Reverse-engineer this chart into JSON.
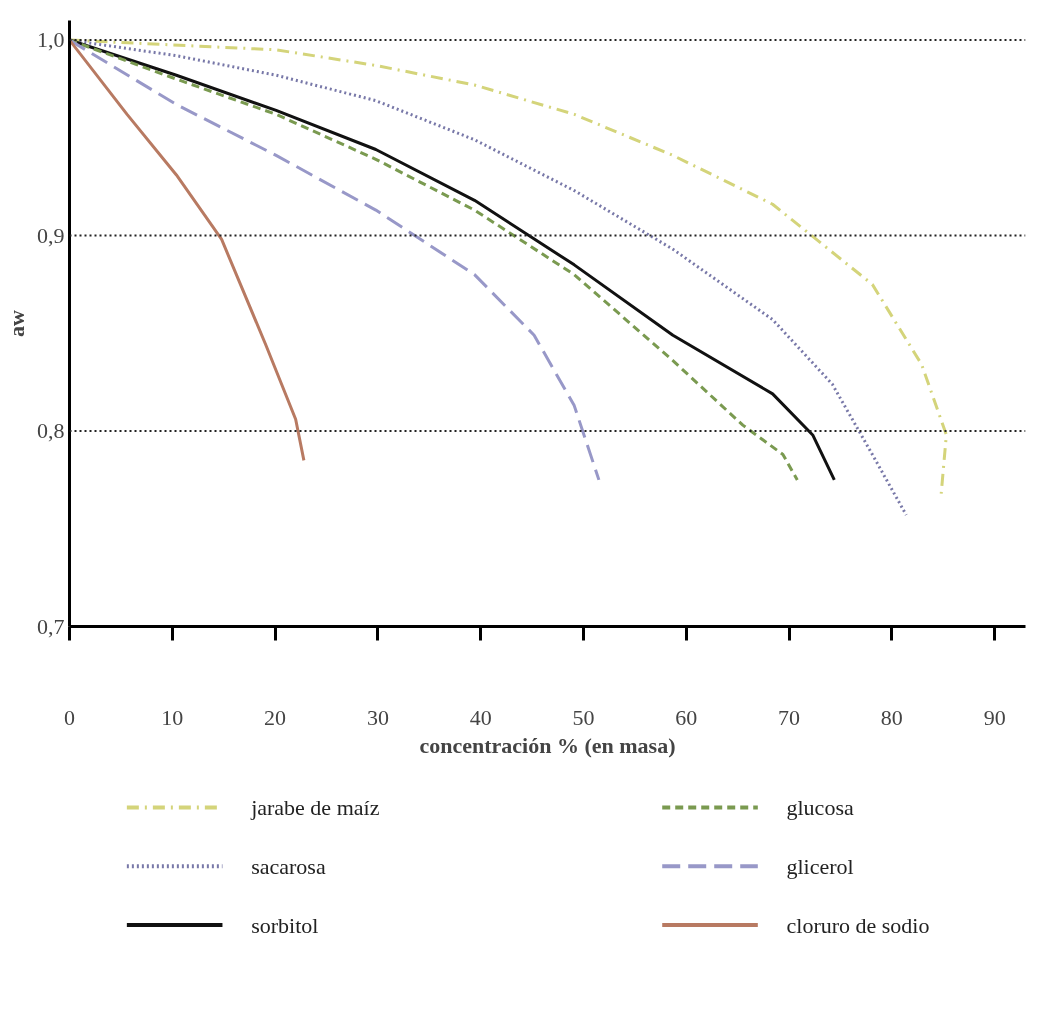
{
  "chart_data": {
    "type": "line",
    "ylabel": "aw",
    "xlabel": "concentración % (en masa)",
    "xlim": [
      0,
      93
    ],
    "ylim": [
      0.7,
      1.01
    ],
    "xticks": [
      0,
      10,
      20,
      30,
      40,
      50,
      60,
      70,
      80,
      90
    ],
    "yticks": [
      {
        "value": 0.7,
        "label": "0,7"
      },
      {
        "value": 0.8,
        "label": "0,8"
      },
      {
        "value": 0.9,
        "label": "0,9"
      },
      {
        "value": 1.0,
        "label": "1,0"
      }
    ],
    "ref_lines": [
      {
        "axis": "y",
        "value": 1.0,
        "line_style": "dotted",
        "color": "#222222"
      },
      {
        "axis": "y",
        "value": 0.9,
        "line_style": "dotted",
        "color": "#222222"
      },
      {
        "axis": "y",
        "value": 0.8,
        "line_style": "dotted",
        "color": "#222222"
      }
    ],
    "grid": false,
    "legend": "bottom",
    "marker": "none",
    "series": [
      {
        "name": "jarabe de maíz",
        "color": "#d4d47a",
        "line_style": "dashdot",
        "x": [
          0,
          20.1,
          29.8,
          39.4,
          49.1,
          58.7,
          68.4,
          78.1,
          82.9,
          85.3,
          84.8
        ],
        "values": [
          1.0,
          0.995,
          0.987,
          0.977,
          0.962,
          0.941,
          0.916,
          0.875,
          0.834,
          0.798,
          0.768
        ]
      },
      {
        "name": "sacarosa",
        "color": "#7878a8",
        "line_style": "dotted",
        "x": [
          0,
          10.4,
          20.1,
          29.8,
          39.4,
          49.1,
          58.7,
          68.4,
          74.2,
          78.1,
          81.4
        ],
        "values": [
          1.0,
          0.992,
          0.982,
          0.969,
          0.949,
          0.923,
          0.893,
          0.857,
          0.824,
          0.788,
          0.757
        ]
      },
      {
        "name": "sorbitol",
        "color": "#111111",
        "line_style": "solid",
        "x": [
          0,
          10.4,
          20.1,
          29.8,
          39.4,
          49.1,
          58.7,
          68.4,
          72.3,
          74.4
        ],
        "values": [
          1.0,
          0.982,
          0.964,
          0.944,
          0.918,
          0.885,
          0.849,
          0.819,
          0.798,
          0.775
        ]
      },
      {
        "name": "glucosa",
        "color": "#7a9a50",
        "line_style": "dashed",
        "x": [
          0,
          10.4,
          20.1,
          29.8,
          39.4,
          49.1,
          58.7,
          65.5,
          69.4,
          70.8
        ],
        "values": [
          1.0,
          0.98,
          0.962,
          0.939,
          0.913,
          0.88,
          0.836,
          0.803,
          0.788,
          0.775
        ]
      },
      {
        "name": "glicerol",
        "color": "#9898c8",
        "line_style": "longdash",
        "x": [
          0,
          10.4,
          20.1,
          29.8,
          39.4,
          45.2,
          49.1,
          51.5
        ],
        "values": [
          1.0,
          0.967,
          0.941,
          0.913,
          0.88,
          0.849,
          0.813,
          0.775
        ]
      },
      {
        "name": "cloruro de sodio",
        "color": "#b87a62",
        "line_style": "solid",
        "x": [
          0,
          5.6,
          10.4,
          14.8,
          19.1,
          22.0,
          22.8
        ],
        "values": [
          1.0,
          0.962,
          0.931,
          0.898,
          0.844,
          0.806,
          0.785
        ]
      }
    ]
  }
}
